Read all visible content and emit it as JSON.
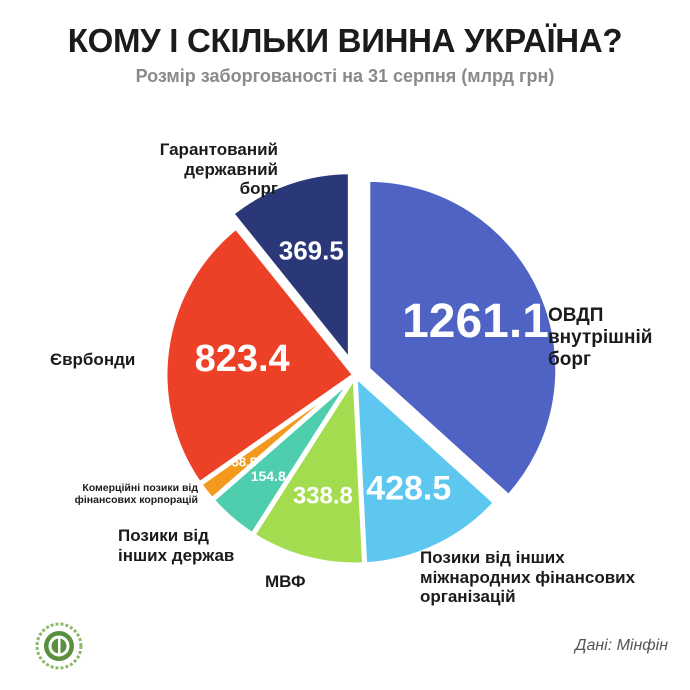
{
  "title": "КОМУ І СКІЛЬКИ ВИННА УКРАЇНА?",
  "subtitle": "Розмір заборгованості на 31 серпня (млрд грн)",
  "source": "Дані: Мінфін",
  "colors": {
    "ovdp": "#4f63c4",
    "ifi": "#5ec7ef",
    "imf": "#a3dc4e",
    "states": "#4fceaf",
    "commercial": "#f39a1e",
    "eurobonds": "#ec4127",
    "guaranteed": "#2a3778"
  },
  "labels": {
    "ovdp": [
      "ОВДП",
      "внутрішній",
      "борг"
    ],
    "ifi": [
      "Позики від інших",
      "міжнародних фінансових",
      "організацій"
    ],
    "imf": [
      "МВФ"
    ],
    "states": [
      "Позики від",
      "інших держав"
    ],
    "commercial": [
      "Комерційні позики від",
      "фінансових корпорацій"
    ],
    "eurobonds": [
      "Єврбонди"
    ],
    "guaranteed": [
      "Гарантований",
      "державний",
      "борг"
    ]
  },
  "chart_data": {
    "type": "pie",
    "title": "КОМУ І СКІЛЬКИ ВИННА УКРАЇНА?",
    "subtitle": "Розмір заборгованості на 31 серпня (млрд грн)",
    "unit": "млрд грн",
    "slices": [
      {
        "name": "ОВДП внутрішній борг",
        "value": 1261.1,
        "value_label": "1261.1"
      },
      {
        "name": "Позики від інших міжнародних фінансових організацій",
        "value": 428.5,
        "value_label": "428.5"
      },
      {
        "name": "МВФ",
        "value": 338.8,
        "value_label": "338.8"
      },
      {
        "name": "Позики від інших держав",
        "value": 154.8,
        "value_label": "154.8"
      },
      {
        "name": "Комерційні позики від фінансових корпорацій",
        "value": 58.5,
        "value_label": "58.5"
      },
      {
        "name": "Єврбонди",
        "value": 823.4,
        "value_label": "823.4"
      },
      {
        "name": "Гарантований державний борг",
        "value": 369.5,
        "value_label": "369.5"
      }
    ]
  }
}
